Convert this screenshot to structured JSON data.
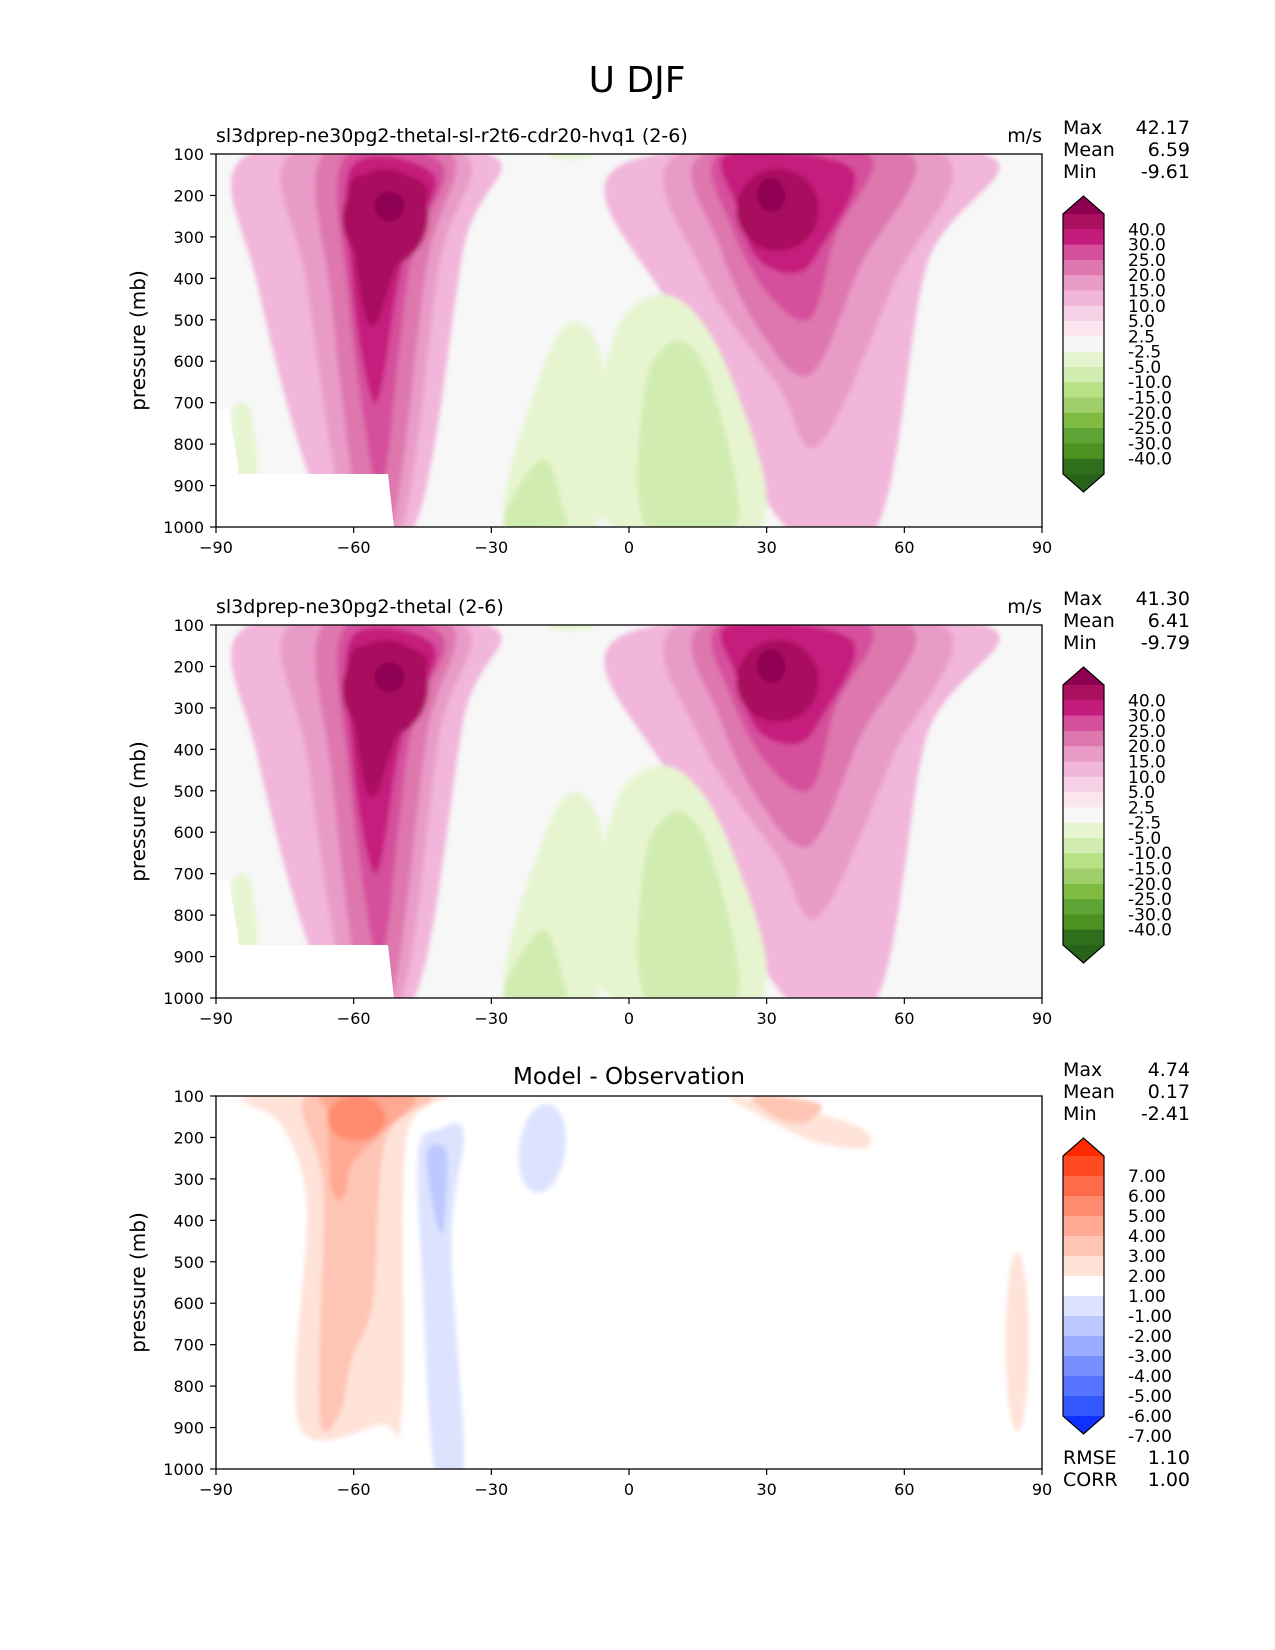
{
  "figure": {
    "title": "U DJF"
  },
  "chart_data": [
    {
      "type": "contour",
      "title": "sl3dprep-ne30pg2-thetal-sl-r2t6-cdr20-hvq1 (2-6)",
      "units": "m/s",
      "ylabel": "pressure (mb)",
      "xticks": [
        "−90",
        "−60",
        "−30",
        "0",
        "30",
        "60",
        "90"
      ],
      "yticks": [
        "100",
        "200",
        "300",
        "400",
        "500",
        "600",
        "700",
        "800",
        "900",
        "1000"
      ],
      "xlim": [
        -90,
        90
      ],
      "ylim": [
        1000,
        100
      ],
      "stats": [
        {
          "label": "Max",
          "value": "42.17"
        },
        {
          "label": "Mean",
          "value": "6.59"
        },
        {
          "label": "Min",
          "value": "-9.61"
        }
      ],
      "colorbar": {
        "labels": [
          "40.0",
          "30.0",
          "25.0",
          "20.0",
          "15.0",
          "10.0",
          "5.0",
          "2.5",
          "-2.5",
          "-5.0",
          "-10.0",
          "-15.0",
          "-20.0",
          "-25.0",
          "-30.0",
          "-40.0"
        ],
        "colors": [
          "#8e0152",
          "#a9105f",
          "#c51b7d",
          "#d64f9c",
          "#de77ae",
          "#e99bc7",
          "#f1b6da",
          "#f7d2e7",
          "#fbe6f0",
          "#f7f7f7",
          "#e6f5d0",
          "#d1ecb0",
          "#b8e186",
          "#9fcf6a",
          "#7fbc41",
          "#5fa436",
          "#4d9221",
          "#2f6e1a",
          "#276419"
        ]
      }
    },
    {
      "type": "contour",
      "title": "sl3dprep-ne30pg2-thetal (2-6)",
      "units": "m/s",
      "ylabel": "pressure (mb)",
      "xticks": [
        "−90",
        "−60",
        "−30",
        "0",
        "30",
        "60",
        "90"
      ],
      "yticks": [
        "100",
        "200",
        "300",
        "400",
        "500",
        "600",
        "700",
        "800",
        "900",
        "1000"
      ],
      "xlim": [
        -90,
        90
      ],
      "ylim": [
        1000,
        100
      ],
      "stats": [
        {
          "label": "Max",
          "value": "41.30"
        },
        {
          "label": "Mean",
          "value": "6.41"
        },
        {
          "label": "Min",
          "value": "-9.79"
        }
      ],
      "colorbar": {
        "labels": [
          "40.0",
          "30.0",
          "25.0",
          "20.0",
          "15.0",
          "10.0",
          "5.0",
          "2.5",
          "-2.5",
          "-5.0",
          "-10.0",
          "-15.0",
          "-20.0",
          "-25.0",
          "-30.0",
          "-40.0"
        ],
        "colors": [
          "#8e0152",
          "#a9105f",
          "#c51b7d",
          "#d64f9c",
          "#de77ae",
          "#e99bc7",
          "#f1b6da",
          "#f7d2e7",
          "#fbe6f0",
          "#f7f7f7",
          "#e6f5d0",
          "#d1ecb0",
          "#b8e186",
          "#9fcf6a",
          "#7fbc41",
          "#5fa436",
          "#4d9221",
          "#2f6e1a",
          "#276419"
        ]
      }
    },
    {
      "type": "contour",
      "title": "Model - Observation",
      "units": "",
      "ylabel": "pressure (mb)",
      "xticks": [
        "−90",
        "−60",
        "−30",
        "0",
        "30",
        "60",
        "90"
      ],
      "yticks": [
        "100",
        "200",
        "300",
        "400",
        "500",
        "600",
        "700",
        "800",
        "900",
        "1000"
      ],
      "xlim": [
        -90,
        90
      ],
      "ylim": [
        1000,
        100
      ],
      "stats": [
        {
          "label": "Max",
          "value": "4.74"
        },
        {
          "label": "Mean",
          "value": "0.17"
        },
        {
          "label": "Min",
          "value": "-2.41"
        }
      ],
      "extra_stats": [
        {
          "label": "RMSE",
          "value": "1.10"
        },
        {
          "label": "CORR",
          "value": "1.00"
        }
      ],
      "colorbar": {
        "labels": [
          "7.00",
          "6.00",
          "5.00",
          "4.00",
          "3.00",
          "2.00",
          "1.00",
          "-1.00",
          "-2.00",
          "-3.00",
          "-4.00",
          "-5.00",
          "-6.00",
          "-7.00"
        ],
        "colors": [
          "#ff2a00",
          "#ff4a22",
          "#ff6a48",
          "#ff8a6e",
          "#ffa892",
          "#ffc5b4",
          "#ffe2d8",
          "#ffffff",
          "#dde3ff",
          "#bcc8ff",
          "#9aacff",
          "#7890ff",
          "#5674ff",
          "#3458ff",
          "#1030ff"
        ]
      }
    }
  ]
}
